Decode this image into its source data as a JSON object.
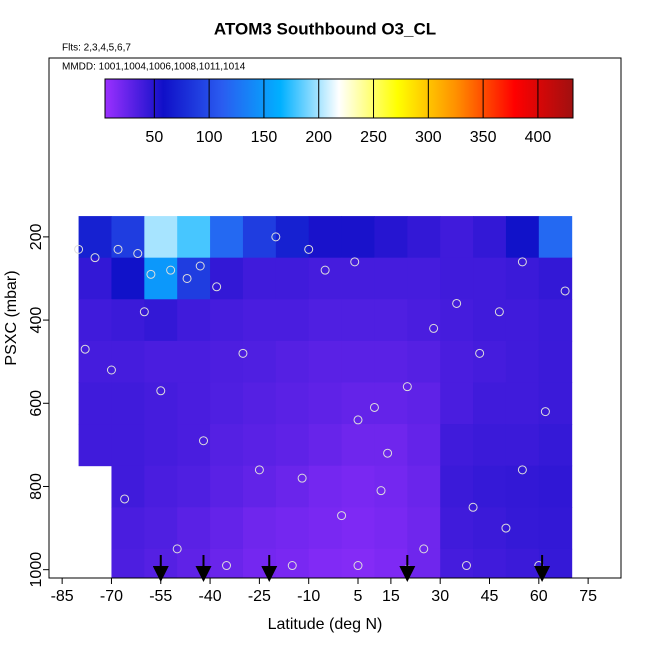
{
  "chart_data": {
    "type": "heatmap",
    "title": "ATOM3 Southbound O3_CL",
    "subtitle": "Flts: 2,3,4,5,6,7",
    "annotation": "MMDD: 1001,1004,1006,1008,1011,1014",
    "xlabel": "Latitude (deg N)",
    "ylabel": "PSXC (mbar)",
    "xlim": [
      -89,
      85
    ],
    "ylim": [
      1020,
      -230
    ],
    "xticks": [
      -85,
      -70,
      -55,
      -40,
      -25,
      -10,
      5,
      15,
      30,
      45,
      60,
      75
    ],
    "yticks": [
      200,
      400,
      600,
      800,
      1000
    ],
    "colorbar": {
      "clim": [
        5,
        432
      ],
      "ticks": [
        50,
        100,
        150,
        200,
        250,
        300,
        350,
        400
      ],
      "colors": [
        "#9b30ff",
        "#1010c8",
        "#2a5cf0",
        "#00b0ff",
        "#ffffff",
        "#ffff00",
        "#ff9000",
        "#ff0000",
        "#a01010"
      ]
    },
    "heatmap": {
      "x": [
        -75,
        -65,
        -55,
        -45,
        -35,
        -25,
        -15,
        -5,
        5,
        15,
        25,
        35,
        45,
        55,
        65
      ],
      "y": [
        200,
        300,
        400,
        500,
        600,
        700,
        800,
        900,
        1000
      ],
      "values": [
        [
          70,
          90,
          200,
          180,
          120,
          90,
          70,
          55,
          55,
          50,
          45,
          40,
          45,
          60,
          120
        ],
        [
          45,
          60,
          150,
          90,
          45,
          40,
          40,
          38,
          38,
          38,
          38,
          40,
          40,
          42,
          45
        ],
        [
          40,
          42,
          45,
          40,
          38,
          36,
          36,
          34,
          34,
          34,
          36,
          38,
          40,
          40,
          42
        ],
        [
          38,
          38,
          36,
          36,
          35,
          34,
          32,
          30,
          30,
          30,
          32,
          36,
          38,
          40,
          42
        ],
        [
          40,
          40,
          38,
          36,
          34,
          32,
          30,
          28,
          26,
          26,
          28,
          36,
          40,
          40,
          42
        ],
        [
          40,
          40,
          38,
          36,
          32,
          30,
          28,
          25,
          22,
          22,
          26,
          40,
          42,
          42,
          44
        ],
        [
          null,
          40,
          36,
          34,
          30,
          27,
          24,
          20,
          18,
          20,
          24,
          42,
          44,
          45,
          46
        ],
        [
          null,
          36,
          34,
          30,
          26,
          22,
          20,
          18,
          16,
          18,
          22,
          40,
          42,
          44,
          45
        ],
        [
          null,
          35,
          32,
          28,
          24,
          20,
          18,
          15,
          14,
          16,
          22,
          38,
          40,
          42,
          44
        ]
      ]
    },
    "samples": {
      "x": [
        -80,
        -75,
        -68,
        -62,
        -60,
        -58,
        -52,
        -47,
        -43,
        -38,
        -30,
        -20,
        -10,
        -5,
        4,
        5,
        10,
        14,
        20,
        28,
        35,
        42,
        48,
        55,
        62,
        68,
        -78,
        -70,
        -55,
        -42,
        -25,
        -12,
        0,
        12,
        25,
        38,
        50,
        60,
        -66,
        -50,
        -35,
        -15,
        5,
        20,
        40,
        55
      ],
      "y": [
        230,
        250,
        230,
        240,
        380,
        290,
        280,
        300,
        270,
        320,
        480,
        200,
        230,
        280,
        260,
        640,
        610,
        720,
        560,
        420,
        360,
        480,
        380,
        260,
        620,
        330,
        470,
        520,
        570,
        690,
        760,
        780,
        870,
        810,
        950,
        990,
        900,
        990,
        830,
        950,
        990,
        990,
        990,
        1000,
        850,
        760
      ],
      "color": "#dddddd"
    },
    "flight_arrows_x": [
      -55,
      -42,
      -22,
      20,
      61
    ]
  }
}
